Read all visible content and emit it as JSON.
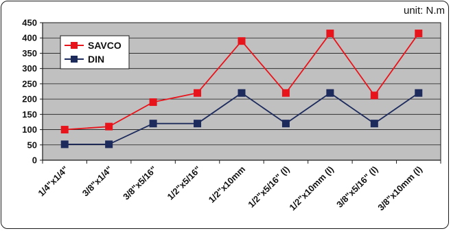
{
  "unit_label": "unit: N.m",
  "chart_data": {
    "type": "line",
    "title": "",
    "xlabel": "",
    "ylabel": "",
    "ylim": [
      0,
      450
    ],
    "yticks": [
      0,
      50,
      100,
      150,
      200,
      250,
      300,
      350,
      400,
      450
    ],
    "grid": true,
    "legend_position": "top-left",
    "categories": [
      "1/4\"x1/4\"",
      "3/8\"x1/4\"",
      "3/8\"x5/16\"",
      "1/2\"x5/16\"",
      "1/2\"x10mm",
      "1/2\"x5/16\" (l)",
      "1/2\"x10mm (l)",
      "3/8\"x5/16\" (l)",
      "3/8\"x10mm (l)"
    ],
    "series": [
      {
        "name": "SAVCO",
        "color": "#e8141b",
        "values": [
          100,
          110,
          190,
          220,
          390,
          220,
          415,
          212,
          415
        ]
      },
      {
        "name": "DIN",
        "color": "#1c2a5c",
        "values": [
          52,
          52,
          120,
          120,
          220,
          120,
          220,
          120,
          220
        ]
      }
    ],
    "colors": {
      "plot_background": "#c0c0c0",
      "grid": "#1a1a1a"
    }
  }
}
